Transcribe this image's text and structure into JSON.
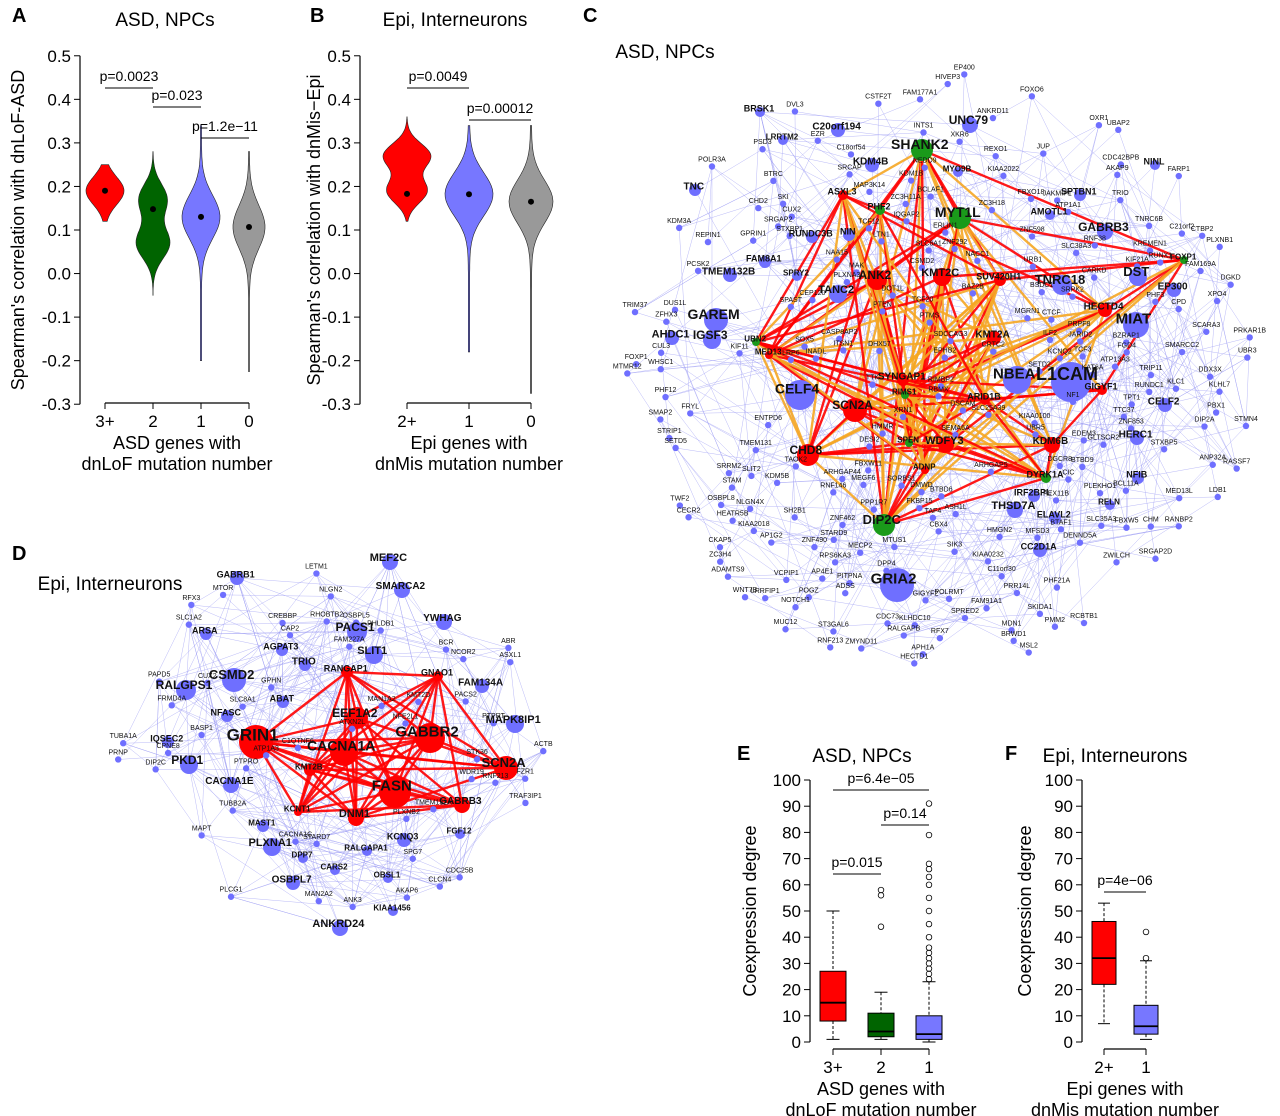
{
  "panels": {
    "A": {
      "letter": "A",
      "title": "ASD, NPCs"
    },
    "B": {
      "letter": "B",
      "title": "Epi, Interneurons"
    },
    "C": {
      "letter": "C",
      "title": "ASD, NPCs"
    },
    "D": {
      "letter": "D",
      "title": "Epi, Interneurons"
    },
    "E": {
      "letter": "E",
      "title": "ASD, NPCs"
    },
    "F": {
      "letter": "F",
      "title": "Epi, Interneurons"
    }
  },
  "chart_data": [
    {
      "panel": "A",
      "type": "violin",
      "title": "ASD, NPCs",
      "ylabel": "Spearman's correlation with dnLoF-ASD",
      "xlabel": [
        "ASD genes with",
        "dnLoF mutation number"
      ],
      "ylim": [
        -0.35,
        0.55
      ],
      "yticks": [
        "0.5",
        "0.4",
        "0.3",
        "0.2",
        "0.1",
        "0.0",
        "-0.1",
        "-0.2",
        "-0.3"
      ],
      "categories": [
        "3+",
        "2",
        "1",
        "0"
      ],
      "colors": [
        "#ff0000",
        "#006400",
        "#7777ff",
        "#999999"
      ],
      "medians": [
        0.19,
        0.148,
        0.13,
        0.107
      ],
      "ranges": [
        [
          0.12,
          0.25
        ],
        [
          -0.05,
          0.28
        ],
        [
          -0.2,
          0.34
        ],
        [
          -0.225,
          0.28
        ]
      ],
      "pvalues": [
        {
          "text": "p=0.0023",
          "from": "3+",
          "to": "2"
        },
        {
          "text": "p=0.023",
          "from": "2",
          "to": "1"
        },
        {
          "text": "p=1.2e−11",
          "from": "1",
          "to": "0"
        }
      ]
    },
    {
      "panel": "B",
      "type": "violin",
      "title": "Epi, Interneurons",
      "ylabel": "Spearman's correlation with dnMis−Epi",
      "xlabel": [
        "Epi genes with",
        "dnMis mutation number"
      ],
      "ylim": [
        -0.35,
        0.55
      ],
      "yticks": [
        "0.5",
        "0.4",
        "0.3",
        "0.2",
        "0.1",
        "0.0",
        "-0.1",
        "-0.2",
        "-0.3"
      ],
      "categories": [
        "2+",
        "1",
        "0"
      ],
      "colors": [
        "#ff0000",
        "#7777ff",
        "#999999"
      ],
      "medians": [
        0.183,
        0.182,
        0.165
      ],
      "ranges": [
        [
          0.12,
          0.36
        ],
        [
          -0.18,
          0.34
        ],
        [
          -0.275,
          0.34
        ]
      ],
      "pvalues": [
        {
          "text": "p=0.0049",
          "from": "2+",
          "to": "1"
        },
        {
          "text": "p=0.00012",
          "from": "1",
          "to": "0"
        }
      ]
    },
    {
      "panel": "E",
      "type": "box",
      "title": "ASD, NPCs",
      "ylabel": "Coexpression degree",
      "xlabel": [
        "ASD genes with",
        "dnLoF mutation number"
      ],
      "ylim": [
        0,
        100
      ],
      "yticks": [
        "100",
        "90",
        "80",
        "70",
        "60",
        "50",
        "40",
        "30",
        "20",
        "10",
        "0"
      ],
      "categories": [
        "3+",
        "2",
        "1"
      ],
      "colors": [
        "#ff0000",
        "#006400",
        "#7777ff"
      ],
      "boxes": [
        {
          "q1": 8,
          "median": 15,
          "q3": 27,
          "whisker_low": 1,
          "whisker_high": 50,
          "outliers": []
        },
        {
          "q1": 2,
          "median": 4,
          "q3": 11,
          "whisker_low": 1,
          "whisker_high": 19,
          "outliers": [
            44,
            56,
            58
          ]
        },
        {
          "q1": 1,
          "median": 3,
          "q3": 10,
          "whisker_low": 0,
          "whisker_high": 23,
          "outliers": [
            24,
            26,
            28,
            30,
            32,
            34,
            36,
            40,
            45,
            50,
            55,
            60,
            63,
            66,
            68,
            79,
            91
          ]
        }
      ],
      "pvalues": [
        {
          "text": "p=0.015",
          "from": "3+",
          "to": "2"
        },
        {
          "text": "p=0.14",
          "from": "2",
          "to": "1"
        },
        {
          "text": "p=6.4e−05",
          "from": "3+",
          "to": "1"
        }
      ]
    },
    {
      "panel": "F",
      "type": "box",
      "title": "Epi, Interneurons",
      "ylabel": "Coexpression degree",
      "xlabel": [
        "Epi genes with",
        "dnMis mutation number"
      ],
      "ylim": [
        0,
        100
      ],
      "yticks": [
        "100",
        "90",
        "80",
        "70",
        "60",
        "50",
        "40",
        "30",
        "20",
        "10",
        "0"
      ],
      "categories": [
        "2+",
        "1"
      ],
      "colors": [
        "#ff0000",
        "#7777ff"
      ],
      "boxes": [
        {
          "q1": 22,
          "median": 32,
          "q3": 46,
          "whisker_low": 7,
          "whisker_high": 53,
          "outliers": []
        },
        {
          "q1": 3,
          "median": 6,
          "q3": 14,
          "whisker_low": 1,
          "whisker_high": 31,
          "outliers": [
            32,
            42
          ]
        }
      ],
      "pvalues": [
        {
          "text": "p=4e−06",
          "from": "2+",
          "to": "1"
        }
      ]
    }
  ],
  "network_C": {
    "colors": {
      "gene": "#6f6fff",
      "edge": "#9d9df4",
      "red": "#ff0000",
      "green": "#1a9a1a",
      "orange": "#f5a623"
    },
    "big_labels": [
      "SHANK2",
      "MYT1L",
      "UNC79",
      "KDM4B",
      "C20orf194",
      "ANK2",
      "KMT2C",
      "GABRB3",
      "SUV420H1",
      "TNRC18",
      "DST",
      "MIAT",
      "HECTD4",
      "GAREM",
      "TANC2",
      "IGSF3",
      "CELF4",
      "KMT2A",
      "NBEA",
      "L1CAM",
      "SCN2A",
      "SYNGAP1",
      "CHD8",
      "WDFY3",
      "KDM6B",
      "DIP2C",
      "GRIA2",
      "CELF2",
      "AHDC1",
      "TMEM132B",
      "THSD7A",
      "EP300",
      "TNC",
      "NIN",
      "ASXL3",
      "PHF2",
      "RUNDC3B",
      "FAM8A1",
      "AMOTL1",
      "SPTBN1",
      "ERBB2IP",
      "BRSK1",
      "MYO9B",
      "LRRTM2",
      "SPRY2",
      "NFIB",
      "HERC1",
      "ELAVL2",
      "IRF2BPL",
      "RELN",
      "CC2D1A",
      "ARID1B",
      "RIMS1",
      "SPEN",
      "ADNP",
      "GIGYF1",
      "DYRK1A",
      "FOXP1",
      "NINL",
      "MED13",
      "UBN2"
    ],
    "small_labels": [
      "RANBP2",
      "CRTC2",
      "XKR6",
      "C21orf2",
      "MEGF6",
      "RALGAPB",
      "KCNQ2",
      "XRN1",
      "DMWD",
      "URB1",
      "SRPK2",
      "PLXNB1",
      "ADSS",
      "LRP6",
      "CARKD",
      "PRKAR1B",
      "DESI2",
      "C18orf54",
      "BTBD6",
      "ATP13A3",
      "ZFHX3",
      "GPRIN1",
      "KIAA2018",
      "POGZ",
      "SLC35A3",
      "STXBP5",
      "PHF21A",
      "SRGAP2",
      "UBR5",
      "CASP8AP2",
      "BTAF1",
      "ASH1L",
      "TAOK2",
      "BSDC1",
      "OSBPL8",
      "FARP1",
      "CUL3",
      "LTN1",
      "MECP2",
      "REXO1",
      "MTUS1",
      "TCF20",
      "RUNDC1",
      "CUX2",
      "DOT1L",
      "ANKRD11",
      "FBXW11",
      "EP400",
      "STARD9",
      "VCPIP1",
      "DSCAM",
      "TNRC6B",
      "JUP",
      "POLR3A",
      "WHSC1",
      "STRIP1",
      "EPHB2",
      "PEX11B",
      "KLHDC10",
      "LDB1",
      "KIAA0100",
      "SORBS1",
      "DGCR8",
      "ZC3H11A",
      "SLC38A3",
      "UBR3",
      "PBX1",
      "TRIO",
      "SRRM2",
      "SPAST",
      "PCSK2",
      "ZC3H18",
      "PTMS",
      "CDC42BPB",
      "RNF38",
      "PLXNA3",
      "TRIM37",
      "SMAP2",
      "PPP1R7",
      "RUNX1",
      "CDC73",
      "PHF12",
      "RASSF7",
      "CSTF2T",
      "RIMBP2",
      "MTMR12",
      "FOXP1",
      "TTC37",
      "DUS1L",
      "SLC6A1",
      "MFSD3",
      "ZC3H4",
      "LRRFIP1",
      "STMN4",
      "RFX7",
      "NLGN4X",
      "CPD",
      "STXBP1",
      "SEMA6A",
      "PTEN",
      "KAT6A",
      "SLIT2",
      "NEDD9",
      "FBXO18",
      "CECR2",
      "FKBP15",
      "ITSN1",
      "FRYL",
      "NF1",
      "MED13L",
      "CHD2",
      "KIAA0232",
      "SLC25A39",
      "SPRED2",
      "DIP2A",
      "KDM1B",
      "ZNF490",
      "MGRN1",
      "DVL3",
      "GLTSCR2",
      "FAM177A1",
      "FAM169A",
      "ARHGAP5",
      "SH2B1",
      "ANP32A",
      "CTBP2",
      "IQGAP2",
      "FBXW5",
      "ENTPD6",
      "CIC",
      "C11orf30",
      "PITPNA",
      "PRR14L",
      "HECTD1",
      "SIK3",
      "AP4E1",
      "KLC1",
      "ZNF292",
      "KDM5B",
      "TAF4",
      "SMARCC2",
      "AKAP9",
      "SRCAP",
      "KREMEN1",
      "XPO4",
      "BTRC",
      "BZRAP1",
      "JAKMIP1",
      "MAP3K14",
      "ATP1A1",
      "ARHGAP44",
      "ZNF462",
      "EDEM3",
      "TPT1",
      "DENND5A",
      "PLEKHO1",
      "TWF2",
      "SETD2",
      "HEATR5B",
      "ZNF853",
      "MSL2",
      "RNF213",
      "UBAP2",
      "SETD5",
      "SCARA3",
      "PHF3",
      "MAK",
      "MUC12",
      "RCBTB1",
      "TMEM131",
      "JARID2",
      "BTBD9",
      "MDN1",
      "SKI",
      "RPS6KA3",
      "ST3GAL6",
      "PRPF8",
      "PSD3",
      "CBX4",
      "DDX3X",
      "HIVEP3",
      "ZMYND11",
      "NAA15",
      "BCL11A",
      "APH1A",
      "STAM",
      "FOXO6",
      "PMM2",
      "SOX5",
      "ZNF598",
      "REPIN1",
      "KLHL7",
      "INTS1",
      "POLRMT",
      "FGD4",
      "CHM",
      "OXR1",
      "DGKD",
      "CSMD2",
      "RNF146",
      "TCF12",
      "FAM91A1",
      "CTCF",
      "TRIP11",
      "TCF3",
      "KIAA2022",
      "WNT7B",
      "CEP120",
      "AP1G2",
      "SKIDA1",
      "GIGYF2",
      "INADL",
      "RBMX",
      "TTK",
      "CKAP5",
      "HMMR",
      "HMGN2",
      "KIF11",
      "ILF2",
      "SRGAP2D",
      "ERLIN1",
      "ZWILCH",
      "DPP4",
      "NACC1",
      "DHX57",
      "SDCCAG3",
      "BRWD1",
      "NOTCH1",
      "BCLAF1",
      "EZR",
      "BAZ2B",
      "KIF21A",
      "ADAMTS9",
      "KDM3A"
    ]
  },
  "network_D": {
    "big_labels": [
      "GRIN1",
      "GABBR2",
      "CACNA1A",
      "FASN",
      "SCN2A",
      "EEF1A2",
      "CSMD2",
      "RALGPS1",
      "PACS1",
      "SLIT1",
      "MEF2C",
      "SMARCA2",
      "YWHAG",
      "PKD1",
      "CACNA1E",
      "PLXNA1",
      "OSBPL7",
      "ANKRD24",
      "TRIO",
      "ABAT",
      "NFASC",
      "IQSEC2",
      "MAPK8IP1",
      "FAM134A",
      "GNAO1",
      "RANGAP1",
      "DNM1",
      "GABRB3",
      "KMT2B",
      "KCNT1",
      "KCNQ3",
      "AGPAT3",
      "ARSA",
      "GABRB1",
      "MAST1",
      "DPP7",
      "CARS2",
      "OBSL1",
      "KIAA1456",
      "RALGAPA1",
      "FGF12"
    ],
    "small_labels": [
      "TMEM132A",
      "NFE2L1",
      "PTPRT",
      "MTOR",
      "FRMD4A",
      "PRNP",
      "ABR",
      "MAPT",
      "RFX3",
      "ATP1A3",
      "ANK3",
      "ASXL1",
      "PAPD5",
      "FZR1",
      "PACS2",
      "BASP1",
      "OSBPL5",
      "MAN1A2",
      "SLC8A1",
      "NLGN2",
      "STK36",
      "ATXN2L",
      "CLCN4",
      "SLC1A2",
      "WDR19",
      "CDC25B",
      "CREBBP",
      "PLCG1",
      "GPHN",
      "RNF213",
      "CUX2",
      "LETM1",
      "CACNA1C",
      "AKAP6",
      "MAN2A2",
      "CPNE8",
      "SPG7",
      "PTPRO",
      "DIP2C",
      "STARD7",
      "PLXNB2",
      "CAP2",
      "BCR",
      "RHOBTB2",
      "PHLDB1",
      "FAM227A",
      "NCOR2",
      "KMT2D",
      "TRAF3IP1",
      "C1QTNF6",
      "ACTB",
      "TUBA1A",
      "TUBB2A"
    ]
  }
}
